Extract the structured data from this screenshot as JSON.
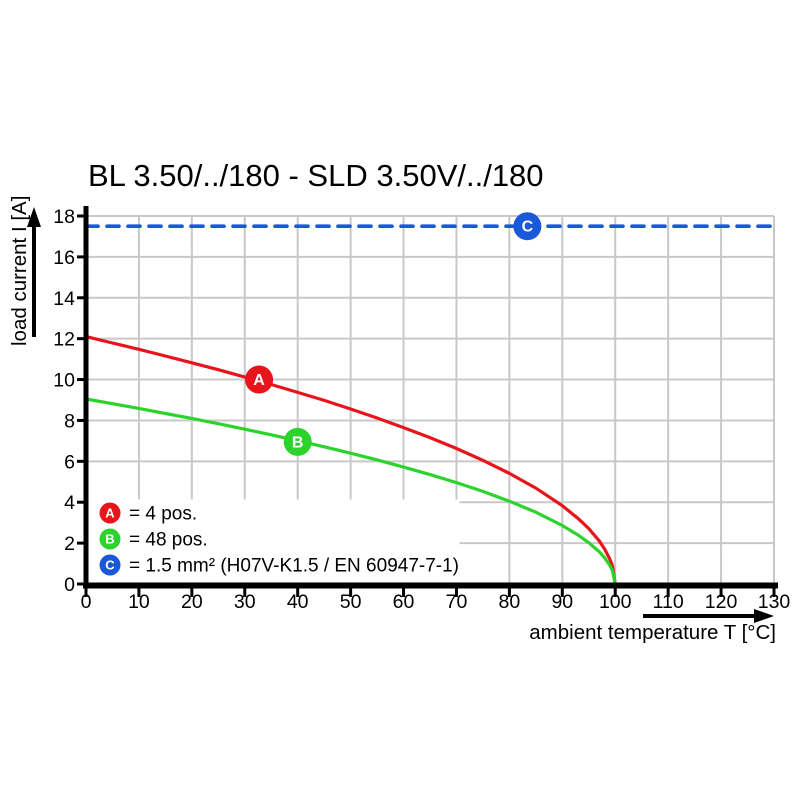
{
  "page": {
    "background": "#ffffff",
    "text_color": "#000000"
  },
  "chart_data": {
    "type": "line",
    "title": "BL 3.50/../180 - SLD 3.50V/../180",
    "xlabel": "ambient temperature T [°C]",
    "ylabel": "load current I [A]",
    "xlim": [
      0,
      130
    ],
    "ylim": [
      0,
      18
    ],
    "x_ticks": [
      0,
      10,
      20,
      30,
      40,
      50,
      60,
      70,
      80,
      90,
      100,
      110,
      120,
      130
    ],
    "y_ticks": [
      0,
      2,
      4,
      6,
      8,
      10,
      12,
      14,
      16,
      18
    ],
    "grid": true,
    "grid_color": "#c8c8c8",
    "legend_position": "bottom-left",
    "series": [
      {
        "name": "A",
        "legend_label": "= 4 pos.",
        "color": "#e8141b",
        "style": "solid",
        "marker": {
          "letter": "A",
          "x": 32.7,
          "y": 10.0
        },
        "points": [
          [
            0,
            12.1
          ],
          [
            5,
            11.79
          ],
          [
            10,
            11.48
          ],
          [
            15,
            11.15
          ],
          [
            20,
            10.82
          ],
          [
            25,
            10.48
          ],
          [
            30,
            10.12
          ],
          [
            35,
            9.76
          ],
          [
            40,
            9.37
          ],
          [
            45,
            8.98
          ],
          [
            50,
            8.56
          ],
          [
            55,
            8.12
          ],
          [
            60,
            7.65
          ],
          [
            65,
            7.16
          ],
          [
            70,
            6.63
          ],
          [
            75,
            6.05
          ],
          [
            80,
            5.41
          ],
          [
            85,
            4.69
          ],
          [
            90,
            3.83
          ],
          [
            93,
            3.2
          ],
          [
            95,
            2.71
          ],
          [
            97,
            2.1
          ],
          [
            98,
            1.71
          ],
          [
            99,
            1.21
          ],
          [
            99.5,
            0.86
          ],
          [
            100,
            0
          ]
        ]
      },
      {
        "name": "B",
        "legend_label": "= 48 pos.",
        "color": "#2cd32c",
        "style": "solid",
        "marker": {
          "letter": "B",
          "x": 40,
          "y": 6.95
        },
        "points": [
          [
            0,
            9.05
          ],
          [
            5,
            8.82
          ],
          [
            10,
            8.59
          ],
          [
            15,
            8.34
          ],
          [
            20,
            8.1
          ],
          [
            25,
            7.84
          ],
          [
            30,
            7.57
          ],
          [
            35,
            7.3
          ],
          [
            40,
            7.01
          ],
          [
            45,
            6.71
          ],
          [
            50,
            6.4
          ],
          [
            55,
            6.07
          ],
          [
            60,
            5.72
          ],
          [
            65,
            5.35
          ],
          [
            70,
            4.96
          ],
          [
            75,
            4.53
          ],
          [
            80,
            4.05
          ],
          [
            85,
            3.51
          ],
          [
            90,
            2.86
          ],
          [
            93,
            2.39
          ],
          [
            95,
            2.02
          ],
          [
            97,
            1.57
          ],
          [
            98,
            1.28
          ],
          [
            99,
            0.91
          ],
          [
            99.5,
            0.64
          ],
          [
            100,
            0
          ]
        ]
      },
      {
        "name": "C",
        "legend_label": "= 1.5 mm² (H07V-K1.5 / EN 60947-7-1)",
        "color": "#1958d8",
        "style": "dashed",
        "marker": {
          "letter": "C",
          "x": 83.4,
          "y": 17.5
        },
        "points": [
          [
            0,
            17.5
          ],
          [
            130,
            17.5
          ]
        ]
      }
    ]
  }
}
